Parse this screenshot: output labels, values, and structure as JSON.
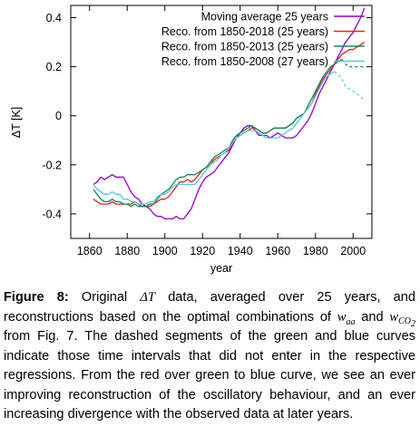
{
  "chart_data": {
    "type": "line",
    "xlabel": "year",
    "ylabel": "ΔT [K]",
    "xlim": [
      1850,
      2010
    ],
    "ylim": [
      -0.5,
      0.45
    ],
    "xticks": [
      1860,
      1880,
      1900,
      1920,
      1940,
      1960,
      1980,
      2000
    ],
    "xtick_labels": [
      "1860",
      "1880",
      "1900",
      "1920",
      "1940",
      "1960",
      "1980",
      "2000"
    ],
    "yticks": [
      0.4,
      0.2,
      0,
      -0.2,
      -0.4
    ],
    "ytick_labels": [
      "0.4",
      "0.2",
      "0",
      "-0.2",
      "-0.4"
    ],
    "grid": false,
    "legend_position": "top-right",
    "series": [
      {
        "name": "Moving average 25 years",
        "color": "#9400d3",
        "x": [
          1862,
          1864,
          1866,
          1868,
          1870,
          1872,
          1874,
          1876,
          1878,
          1880,
          1882,
          1884,
          1886,
          1888,
          1890,
          1892,
          1894,
          1896,
          1898,
          1900,
          1902,
          1904,
          1906,
          1908,
          1910,
          1912,
          1914,
          1916,
          1918,
          1920,
          1922,
          1924,
          1926,
          1928,
          1930,
          1932,
          1934,
          1936,
          1938,
          1940,
          1942,
          1944,
          1946,
          1948,
          1950,
          1952,
          1954,
          1956,
          1958,
          1960,
          1962,
          1964,
          1966,
          1968,
          1970,
          1972,
          1974,
          1976,
          1978,
          1980,
          1982,
          1984,
          1986,
          1988,
          1990,
          1992,
          1994,
          1996,
          1998,
          2000,
          2002,
          2004,
          2006
        ],
        "y": [
          -0.28,
          -0.27,
          -0.25,
          -0.26,
          -0.25,
          -0.24,
          -0.25,
          -0.25,
          -0.25,
          -0.28,
          -0.31,
          -0.33,
          -0.34,
          -0.36,
          -0.37,
          -0.38,
          -0.4,
          -0.41,
          -0.41,
          -0.42,
          -0.42,
          -0.42,
          -0.41,
          -0.42,
          -0.42,
          -0.4,
          -0.38,
          -0.34,
          -0.3,
          -0.27,
          -0.25,
          -0.24,
          -0.23,
          -0.21,
          -0.19,
          -0.17,
          -0.15,
          -0.12,
          -0.09,
          -0.07,
          -0.05,
          -0.04,
          -0.04,
          -0.06,
          -0.08,
          -0.08,
          -0.08,
          -0.09,
          -0.08,
          -0.07,
          -0.08,
          -0.09,
          -0.09,
          -0.09,
          -0.08,
          -0.06,
          -0.04,
          -0.02,
          0.01,
          0.05,
          0.09,
          0.12,
          0.15,
          0.18,
          0.21,
          0.24,
          0.27,
          0.3,
          0.32,
          0.34,
          0.37,
          0.4,
          0.44
        ]
      },
      {
        "name": "Reco. from 1850-2018 (25 years)",
        "color": "#e8231a",
        "x": [
          1862,
          1864,
          1866,
          1868,
          1870,
          1872,
          1874,
          1876,
          1878,
          1880,
          1882,
          1884,
          1886,
          1888,
          1890,
          1892,
          1894,
          1896,
          1898,
          1900,
          1902,
          1904,
          1906,
          1908,
          1910,
          1912,
          1914,
          1916,
          1918,
          1920,
          1922,
          1924,
          1926,
          1928,
          1930,
          1932,
          1934,
          1936,
          1938,
          1940,
          1942,
          1944,
          1946,
          1948,
          1950,
          1952,
          1954,
          1956,
          1958,
          1960,
          1962,
          1964,
          1966,
          1968,
          1970,
          1972,
          1974,
          1976,
          1978,
          1980,
          1982,
          1984,
          1986,
          1988,
          1990,
          1992,
          1994,
          1996,
          1998,
          2000,
          2002,
          2004,
          2006
        ],
        "y": [
          -0.34,
          -0.35,
          -0.36,
          -0.36,
          -0.36,
          -0.35,
          -0.36,
          -0.36,
          -0.36,
          -0.36,
          -0.36,
          -0.35,
          -0.36,
          -0.37,
          -0.37,
          -0.37,
          -0.36,
          -0.35,
          -0.34,
          -0.34,
          -0.33,
          -0.31,
          -0.29,
          -0.27,
          -0.27,
          -0.26,
          -0.27,
          -0.26,
          -0.24,
          -0.22,
          -0.21,
          -0.2,
          -0.18,
          -0.17,
          -0.16,
          -0.15,
          -0.14,
          -0.11,
          -0.09,
          -0.08,
          -0.07,
          -0.06,
          -0.05,
          -0.05,
          -0.06,
          -0.07,
          -0.07,
          -0.06,
          -0.05,
          -0.05,
          -0.05,
          -0.05,
          -0.04,
          -0.03,
          -0.01,
          0.0,
          0.01,
          0.03,
          0.05,
          0.09,
          0.12,
          0.15,
          0.17,
          0.19,
          0.21,
          0.23,
          0.25,
          0.26,
          0.27,
          0.27,
          0.28,
          0.29,
          0.3
        ]
      },
      {
        "name": "Reco. from 1850-2013 (25 years)",
        "color": "#108a5a",
        "x": [
          1862,
          1864,
          1866,
          1868,
          1870,
          1872,
          1874,
          1876,
          1878,
          1880,
          1882,
          1884,
          1886,
          1888,
          1890,
          1892,
          1894,
          1896,
          1898,
          1900,
          1902,
          1904,
          1906,
          1908,
          1910,
          1912,
          1914,
          1916,
          1918,
          1920,
          1922,
          1924,
          1926,
          1928,
          1930,
          1932,
          1934,
          1936,
          1938,
          1940,
          1942,
          1944,
          1946,
          1948,
          1950,
          1952,
          1954,
          1956,
          1958,
          1960,
          1962,
          1964,
          1966,
          1968,
          1970,
          1972,
          1974,
          1976,
          1978,
          1980,
          1982,
          1984,
          1986,
          1988,
          1990,
          1992,
          1994
        ],
        "y": [
          -0.3,
          -0.32,
          -0.34,
          -0.35,
          -0.35,
          -0.34,
          -0.35,
          -0.35,
          -0.36,
          -0.36,
          -0.37,
          -0.36,
          -0.37,
          -0.37,
          -0.37,
          -0.36,
          -0.36,
          -0.34,
          -0.32,
          -0.31,
          -0.3,
          -0.28,
          -0.26,
          -0.25,
          -0.25,
          -0.24,
          -0.24,
          -0.24,
          -0.23,
          -0.22,
          -0.21,
          -0.19,
          -0.17,
          -0.16,
          -0.15,
          -0.14,
          -0.13,
          -0.1,
          -0.08,
          -0.07,
          -0.06,
          -0.05,
          -0.04,
          -0.05,
          -0.06,
          -0.07,
          -0.07,
          -0.06,
          -0.05,
          -0.05,
          -0.05,
          -0.05,
          -0.04,
          -0.03,
          -0.01,
          0.0,
          0.01,
          0.04,
          0.07,
          0.1,
          0.13,
          0.16,
          0.18,
          0.2,
          0.21,
          0.22,
          0.23
        ]
      },
      {
        "name": "Reco. from 1850-2013 (25 years) dashed",
        "color": "#108a5a",
        "x": [
          1994,
          1996,
          1998,
          2000,
          2002,
          2004,
          2006
        ],
        "y": [
          0.23,
          0.21,
          0.2,
          0.2,
          0.2,
          0.2,
          0.2
        ]
      },
      {
        "name": "Reco. from 1850-2008 (27 years)",
        "color": "#55c7e0",
        "x": [
          1862,
          1864,
          1866,
          1868,
          1870,
          1872,
          1874,
          1876,
          1878,
          1880,
          1882,
          1884,
          1886,
          1888,
          1890,
          1892,
          1894,
          1896,
          1898,
          1900,
          1902,
          1904,
          1906,
          1908,
          1910,
          1912,
          1914,
          1916,
          1918,
          1920,
          1922,
          1924,
          1926,
          1928,
          1930,
          1932,
          1934,
          1936,
          1938,
          1940,
          1942,
          1944,
          1946,
          1948,
          1950,
          1952,
          1954,
          1956,
          1958,
          1960,
          1962,
          1964,
          1966,
          1968,
          1970,
          1972,
          1974,
          1976,
          1978,
          1980,
          1982,
          1984,
          1986,
          1988,
          1990
        ],
        "y": [
          -0.28,
          -0.3,
          -0.31,
          -0.32,
          -0.32,
          -0.31,
          -0.32,
          -0.32,
          -0.34,
          -0.34,
          -0.35,
          -0.35,
          -0.36,
          -0.36,
          -0.36,
          -0.35,
          -0.35,
          -0.33,
          -0.32,
          -0.32,
          -0.31,
          -0.29,
          -0.28,
          -0.28,
          -0.28,
          -0.28,
          -0.28,
          -0.28,
          -0.26,
          -0.24,
          -0.22,
          -0.2,
          -0.19,
          -0.18,
          -0.16,
          -0.15,
          -0.13,
          -0.11,
          -0.09,
          -0.08,
          -0.07,
          -0.06,
          -0.06,
          -0.06,
          -0.07,
          -0.08,
          -0.09,
          -0.09,
          -0.09,
          -0.09,
          -0.08,
          -0.07,
          -0.06,
          -0.05,
          -0.03,
          -0.01,
          0.01,
          0.03,
          0.05,
          0.08,
          0.11,
          0.14,
          0.16,
          0.17,
          0.18
        ]
      },
      {
        "name": "Reco. from 1850-2008 (27 years) dashed",
        "color": "#55c7e0",
        "x": [
          1990,
          1992,
          1994,
          1996,
          1998,
          2000,
          2002,
          2004,
          2006
        ],
        "y": [
          0.18,
          0.17,
          0.15,
          0.12,
          0.11,
          0.1,
          0.09,
          0.08,
          0.06
        ]
      }
    ],
    "legend": [
      {
        "label": "Moving average 25 years",
        "color": "#9400d3"
      },
      {
        "label": "Reco. from 1850-2018 (25 years)",
        "color": "#e8231a"
      },
      {
        "label": "Reco. from 1850-2013 (25 years)",
        "color": "#108a5a"
      },
      {
        "label": "Reco. from 1850-2008 (27 years)",
        "color": "#55c7e0"
      }
    ]
  },
  "caption": {
    "figure_label": "Figure 8:",
    "p1": " Original ",
    "delta_t": "ΔT",
    "p2": " data, averaged over 25 years, and reconstructions based on the optimal combinations of ",
    "w_aa": "w",
    "w_aa_sub": "aa",
    "p3": " and ",
    "w_co2": "w",
    "w_co2_sub": "CO",
    "w_co2_sub2": "2",
    "p4": " from Fig. 7. The dashed segments of the green and blue curves indicate those time intervals that did not enter in the respective regressions. From the red over green to blue curve, we see an ever improving reconstruction of the oscillatory behaviour, and an ever increasing divergence with the observed data at later years."
  }
}
